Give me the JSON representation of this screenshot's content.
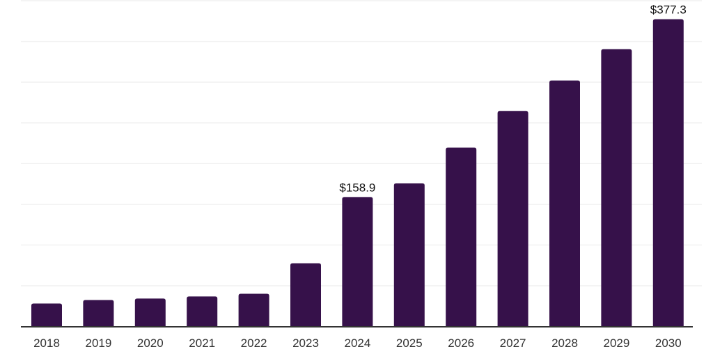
{
  "chart_data": {
    "type": "bar",
    "title": "",
    "xlabel": "",
    "ylabel": "",
    "categories": [
      "2018",
      "2019",
      "2020",
      "2021",
      "2022",
      "2023",
      "2024",
      "2025",
      "2026",
      "2027",
      "2028",
      "2029",
      "2030"
    ],
    "values": [
      28.2,
      32.4,
      34.3,
      36.8,
      40.1,
      77.6,
      158.9,
      175.8,
      219.5,
      264.5,
      302.0,
      340.5,
      377.3
    ],
    "data_labels": [
      {
        "index": 6,
        "text": "$158.9"
      },
      {
        "index": 12,
        "text": "$377.3"
      }
    ],
    "ylim": [
      0,
      400
    ],
    "grid": true,
    "grid_step": 50,
    "legend": false,
    "colors": {
      "bar": "#36114a",
      "axis_line": "#333333",
      "gridline": "#f1f1f1",
      "tick_label": "#333333",
      "data_label": "#0d0d0d",
      "background": "#ffffff"
    }
  }
}
